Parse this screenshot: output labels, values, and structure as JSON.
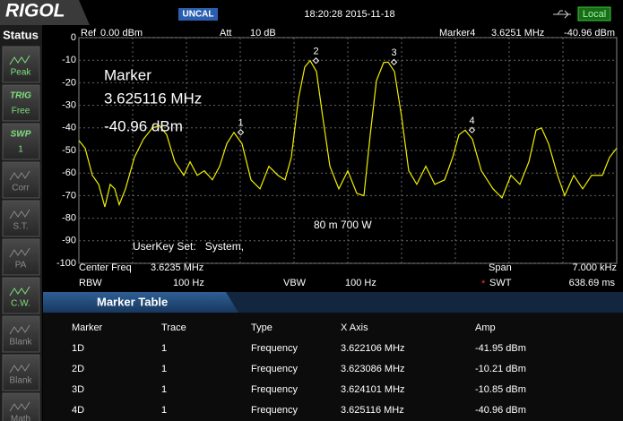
{
  "header": {
    "logo": "RIGOL",
    "uncal": "UNCAL",
    "datetime": "18:20:28 2015-11-18",
    "mode": "Local"
  },
  "status": {
    "title": "Status",
    "buttons": [
      {
        "label": "Peak"
      },
      {
        "top": "TRIG",
        "label": "Free"
      },
      {
        "top": "SWP",
        "label": "1"
      },
      {
        "label": "Corr"
      },
      {
        "label": "S.T."
      },
      {
        "label": "PA"
      },
      {
        "label": "C.W."
      },
      {
        "label": "Blank"
      },
      {
        "label": "Blank"
      },
      {
        "label": "Math"
      }
    ]
  },
  "info": {
    "ref": "Ref",
    "ref_value": "0.00 dBm",
    "att": "Att",
    "att_value": "10 dB",
    "marker": "Marker4",
    "marker_freq": "3.6251 MHz",
    "marker_amp": "-40.96 dBm"
  },
  "overlay": {
    "marker_lines": [
      "Marker",
      "3.625116 MHz",
      "-40.96 dBm"
    ],
    "power": "80 m 700 W",
    "userkey": "UserKey Set:   System,"
  },
  "chart_data": {
    "type": "line",
    "x": [
      3.62,
      3.620082,
      3.620175,
      3.620257,
      3.620338,
      3.620408,
      3.620467,
      3.620525,
      3.620607,
      3.620723,
      3.62084,
      3.620957,
      3.62105,
      3.621143,
      3.621248,
      3.621365,
      3.621447,
      3.62154,
      3.621633,
      3.621738,
      3.621832,
      3.621925,
      3.622018,
      3.622123,
      3.62224,
      3.622357,
      3.622473,
      3.62259,
      3.622683,
      3.622765,
      3.622858,
      3.62294,
      3.62301,
      3.623092,
      3.623173,
      3.623267,
      3.623383,
      3.6235,
      3.623617,
      3.62371,
      3.623792,
      3.623873,
      3.623967,
      3.624025,
      3.624107,
      3.6242,
      3.624293,
      3.624398,
      3.624515,
      3.624632,
      3.62476,
      3.624865,
      3.624947,
      3.625028,
      3.625122,
      3.625238,
      3.62539,
      3.625507,
      3.625623,
      3.62574,
      3.625857,
      3.62595,
      3.62602,
      3.626113,
      3.62623,
      3.626323,
      3.62644,
      3.626557,
      3.626673,
      3.626813,
      3.626907,
      3.627
    ],
    "series": [
      {
        "color": "#f0f000",
        "values": [
          -45.6,
          -49,
          -61,
          -65,
          -75,
          -65,
          -67,
          -74,
          -67,
          -53,
          -45,
          -40,
          -39,
          -43,
          -55,
          -61,
          -55,
          -61,
          -59,
          -63,
          -57,
          -47,
          -42,
          -47,
          -63,
          -67,
          -57,
          -61,
          -63,
          -53,
          -27,
          -13,
          -10.2,
          -15,
          -35,
          -57,
          -67,
          -59,
          -69,
          -70,
          -43,
          -19,
          -11,
          -10.85,
          -15,
          -35,
          -59,
          -65,
          -57,
          -65,
          -63,
          -53,
          -43,
          -41,
          -45,
          -59,
          -67,
          -71,
          -61,
          -65,
          -55,
          -41,
          -40,
          -47,
          -61,
          -70,
          -61,
          -67,
          -61,
          -61,
          -53,
          -49
        ]
      }
    ],
    "xlim": [
      3.62,
      3.627
    ],
    "ylim": [
      -100,
      0
    ],
    "yticks": [
      0,
      -10,
      -20,
      -30,
      -40,
      -50,
      -60,
      -70,
      -80,
      -90,
      -100
    ],
    "grid": true,
    "markers": [
      {
        "label": "1",
        "x": 3.622106,
        "y": -41.95
      },
      {
        "label": "2",
        "x": 3.623086,
        "y": -10.21
      },
      {
        "label": "3",
        "x": 3.624101,
        "y": -10.85
      },
      {
        "label": "4",
        "x": 3.625116,
        "y": -40.96
      }
    ]
  },
  "footer": {
    "center_label": "Center Freq",
    "center_value": "3.6235 MHz",
    "span_label": "Span",
    "span_value": "7.000 kHz",
    "rbw_label": "RBW",
    "rbw_value": "100 Hz",
    "vbw_label": "VBW",
    "vbw_value": "100 Hz",
    "swt_flag": "*",
    "swt_label": "SWT",
    "swt_value": "638.69 ms"
  },
  "marker_table": {
    "title": "Marker Table",
    "columns": [
      "Marker",
      "Trace",
      "Type",
      "X Axis",
      "Amp"
    ],
    "rows": [
      [
        "1D",
        "1",
        "Frequency",
        "3.622106 MHz",
        "-41.95 dBm"
      ],
      [
        "2D",
        "1",
        "Frequency",
        "3.623086 MHz",
        "-10.21 dBm"
      ],
      [
        "3D",
        "1",
        "Frequency",
        "3.624101 MHz",
        "-10.85 dBm"
      ],
      [
        "4D",
        "1",
        "Frequency",
        "3.625116 MHz",
        "-40.96 dBm"
      ]
    ]
  }
}
